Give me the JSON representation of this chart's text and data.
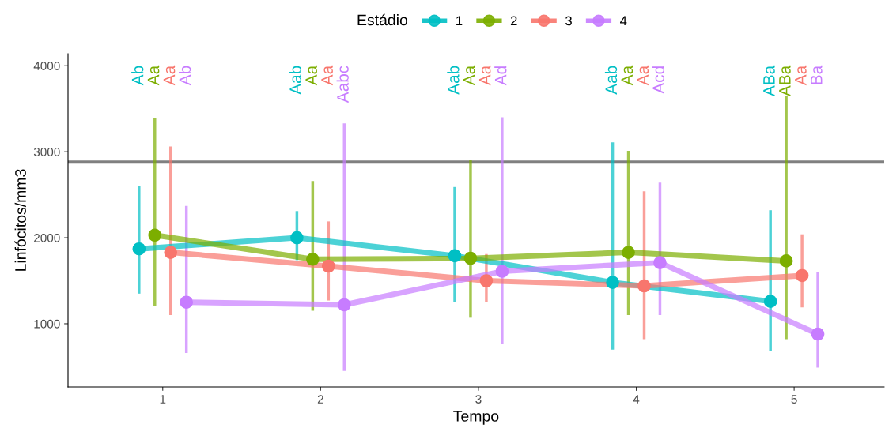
{
  "chart_data": {
    "type": "line",
    "xlabel": "Tempo",
    "ylabel": "Linfócitos/mm3",
    "legend_title": "Estádio",
    "legend": "top",
    "grid": false,
    "marker": "circle",
    "line_style": "solid",
    "xlim": [
      0.4,
      5.57
    ],
    "xticks": [
      1,
      2,
      3,
      4,
      5
    ],
    "ylim": [
      265,
      4140
    ],
    "yticks": [
      1000,
      2000,
      3000,
      4000
    ],
    "series": [
      {
        "name": "1",
        "color": "#00bfc4",
        "x": [
          0.85,
          1.85,
          2.85,
          3.85,
          4.85
        ],
        "values": [
          1870,
          2000,
          1790,
          1480,
          1260
        ],
        "errors": [
          [
            1350,
            2600
          ],
          [
            1740,
            2310
          ],
          [
            1250,
            2590
          ],
          [
            700,
            3110
          ],
          [
            680,
            2320
          ]
        ]
      },
      {
        "name": "2",
        "color": "#7cae00",
        "x": [
          0.95,
          1.95,
          2.95,
          3.95,
          4.95
        ],
        "values": [
          2030,
          1750,
          1760,
          1830,
          1730
        ],
        "errors": [
          [
            1210,
            3390
          ],
          [
            1150,
            2660
          ],
          [
            1070,
            2900
          ],
          [
            1100,
            3010
          ],
          [
            820,
            3650
          ]
        ]
      },
      {
        "name": "3",
        "color": "#f8766d",
        "x": [
          1.05,
          2.05,
          3.05,
          4.05,
          5.05
        ],
        "values": [
          1830,
          1670,
          1500,
          1440,
          1560
        ],
        "errors": [
          [
            1100,
            3060
          ],
          [
            1270,
            2190
          ],
          [
            1250,
            1810
          ],
          [
            820,
            2540
          ],
          [
            1190,
            2040
          ]
        ]
      },
      {
        "name": "4",
        "color": "#c77cff",
        "x": [
          1.15,
          2.15,
          3.15,
          4.15,
          5.15
        ],
        "values": [
          1250,
          1220,
          1610,
          1710,
          880
        ],
        "errors": [
          [
            660,
            2370
          ],
          [
            450,
            3330
          ],
          [
            760,
            3400
          ],
          [
            1100,
            2640
          ],
          [
            490,
            1600
          ]
        ]
      }
    ],
    "ref_lines": [
      {
        "axis": "y",
        "value": 2880,
        "color": "#808080"
      }
    ],
    "annotations": [
      "Ab",
      "Aa",
      "Aa",
      "Ab",
      "Aab",
      "Aa",
      "Aa",
      "Aabc",
      "Aab",
      "Aa",
      "Aa",
      "Ad",
      "Aab",
      "Aa",
      "Aa",
      "Acd",
      "ABa",
      "ABa",
      "Aa",
      "Ba"
    ]
  }
}
